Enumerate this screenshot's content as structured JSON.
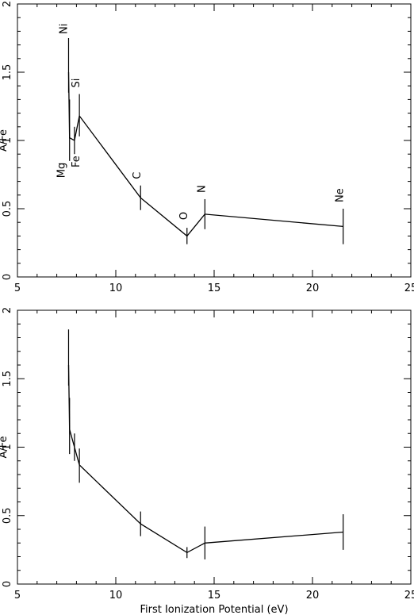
{
  "chart_data": [
    {
      "type": "line",
      "xlabel": "",
      "ylabel": "A/Fe",
      "xlim": [
        5,
        25
      ],
      "ylim": [
        0,
        2
      ],
      "xticks": [
        "5",
        "10",
        "15",
        "20",
        "25"
      ],
      "yticks": [
        "0",
        "0.5",
        "1",
        "1.5",
        "2"
      ],
      "points": [
        {
          "label": "Ni",
          "x": 7.6,
          "y": 1.5,
          "lo": 1.35,
          "hi": 1.75
        },
        {
          "label": "Mg",
          "x": 7.65,
          "y": 1.02,
          "lo": 0.85,
          "hi": 1.3
        },
        {
          "label": "Fe",
          "x": 7.9,
          "y": 1.0,
          "lo": 0.9,
          "hi": 1.1
        },
        {
          "label": "Si",
          "x": 8.15,
          "y": 1.18,
          "lo": 1.03,
          "hi": 1.34
        },
        {
          "label": "C",
          "x": 11.26,
          "y": 0.58,
          "lo": 0.49,
          "hi": 0.67
        },
        {
          "label": "O",
          "x": 13.62,
          "y": 0.3,
          "lo": 0.24,
          "hi": 0.36
        },
        {
          "label": "N",
          "x": 14.53,
          "y": 0.46,
          "lo": 0.35,
          "hi": 0.57
        },
        {
          "label": "Ne",
          "x": 21.56,
          "y": 0.37,
          "lo": 0.24,
          "hi": 0.5
        }
      ]
    },
    {
      "type": "line",
      "xlabel": "First Ionization Potential (eV)",
      "ylabel": "A/Fe",
      "xlim": [
        5,
        25
      ],
      "ylim": [
        0,
        2
      ],
      "xticks": [
        "5",
        "10",
        "15",
        "20",
        "25"
      ],
      "yticks": [
        "0",
        "0.5",
        "1",
        "1.5",
        "2"
      ],
      "points": [
        {
          "x": 7.6,
          "y": 1.6,
          "lo": 1.45,
          "hi": 1.86
        },
        {
          "x": 7.65,
          "y": 1.13,
          "lo": 0.95,
          "hi": 1.36
        },
        {
          "x": 7.9,
          "y": 1.0,
          "lo": 0.9,
          "hi": 1.1
        },
        {
          "x": 8.15,
          "y": 0.87,
          "lo": 0.74,
          "hi": 0.99
        },
        {
          "x": 11.26,
          "y": 0.44,
          "lo": 0.35,
          "hi": 0.53
        },
        {
          "x": 13.62,
          "y": 0.23,
          "lo": 0.19,
          "hi": 0.27
        },
        {
          "x": 14.53,
          "y": 0.3,
          "lo": 0.18,
          "hi": 0.42
        },
        {
          "x": 21.56,
          "y": 0.38,
          "lo": 0.25,
          "hi": 0.51
        }
      ]
    }
  ]
}
